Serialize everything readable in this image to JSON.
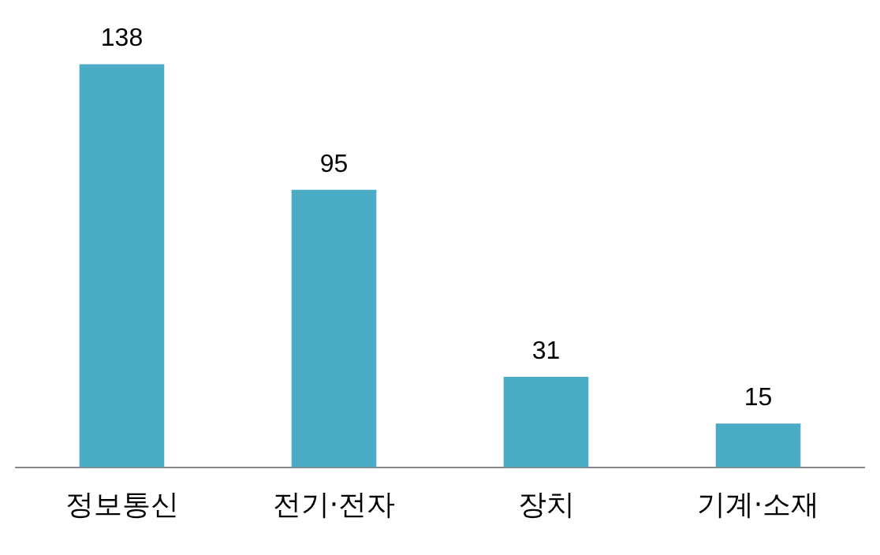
{
  "chart_data": {
    "type": "bar",
    "categories": [
      "정보통신",
      "전기·전자",
      "장치",
      "기계·소재"
    ],
    "values": [
      138,
      95,
      31,
      15
    ],
    "color": "#4bacc6",
    "data_labels": true,
    "grid": false,
    "legend": false,
    "tick_labels": "x"
  }
}
